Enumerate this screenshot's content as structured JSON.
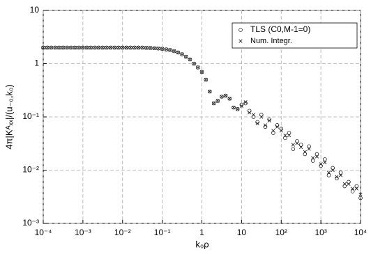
{
  "chart_data": {
    "type": "scatter",
    "xlabel": "k₀ρ",
    "ylabel": "4π|Kᴬₓₓ|/(u₋₀,k₀)",
    "x": [
      0.0001,
      0.000126,
      0.000158,
      0.0002,
      0.000251,
      0.000316,
      0.000398,
      0.000501,
      0.000631,
      0.000794,
      0.001,
      0.00126,
      0.00158,
      0.002,
      0.00251,
      0.00316,
      0.00398,
      0.00501,
      0.00631,
      0.00794,
      0.01,
      0.0126,
      0.0158,
      0.02,
      0.0251,
      0.0316,
      0.0398,
      0.0501,
      0.0631,
      0.0794,
      0.1,
      0.126,
      0.158,
      0.2,
      0.251,
      0.316,
      0.398,
      0.501,
      0.631,
      0.794,
      1,
      1.26,
      1.58,
      2,
      2.51,
      3.16,
      3.98,
      5.01,
      6.31,
      7.94,
      10,
      12.6,
      15.8,
      20,
      25.1,
      31.6,
      39.8,
      50.1,
      63.1,
      79.4,
      100,
      126,
      158,
      200,
      251,
      316,
      398,
      501,
      631,
      794,
      1000,
      1259,
      1585,
      1995,
      2512,
      3162,
      3981,
      5012,
      6310,
      7943,
      10000
    ],
    "series": [
      {
        "name": "TLS (C0,M-1=0)",
        "marker": "circle",
        "color": "#222222",
        "values": [
          2,
          2,
          2,
          2,
          2,
          2,
          2,
          2,
          2,
          2,
          2,
          2,
          2,
          2,
          2,
          2,
          2,
          2,
          2,
          2,
          2,
          2,
          2,
          2,
          2,
          2,
          1.98,
          1.97,
          1.95,
          1.93,
          1.9,
          1.85,
          1.8,
          1.72,
          1.62,
          1.5,
          1.35,
          1.2,
          1.0,
          0.85,
          0.7,
          0.5,
          0.3,
          0.18,
          0.2,
          0.24,
          0.25,
          0.22,
          0.15,
          0.14,
          0.17,
          0.18,
          0.13,
          0.1,
          0.08,
          0.11,
          0.065,
          0.09,
          0.05,
          0.07,
          0.06,
          0.04,
          0.05,
          0.025,
          0.035,
          0.03,
          0.02,
          0.028,
          0.015,
          0.02,
          0.012,
          0.016,
          0.008,
          0.011,
          0.007,
          0.009,
          0.005,
          0.006,
          0.004,
          0.005,
          0.003
        ]
      },
      {
        "name": "Num. Integr.",
        "marker": "cross",
        "color": "#222222",
        "values": [
          2,
          2,
          2,
          2,
          2,
          2,
          2,
          2,
          2,
          2,
          2,
          2,
          2,
          2,
          2,
          2,
          2,
          2,
          2,
          2,
          2,
          2,
          2,
          2,
          2,
          2,
          1.98,
          1.97,
          1.95,
          1.93,
          1.9,
          1.85,
          1.8,
          1.72,
          1.62,
          1.5,
          1.35,
          1.2,
          1.0,
          0.85,
          0.7,
          0.5,
          0.3,
          0.18,
          0.2,
          0.24,
          0.25,
          0.22,
          0.15,
          0.14,
          0.16,
          0.19,
          0.12,
          0.11,
          0.075,
          0.1,
          0.07,
          0.085,
          0.055,
          0.065,
          0.055,
          0.045,
          0.045,
          0.03,
          0.032,
          0.027,
          0.022,
          0.025,
          0.017,
          0.018,
          0.013,
          0.014,
          0.009,
          0.01,
          0.0075,
          0.008,
          0.0055,
          0.0055,
          0.0045,
          0.0045,
          0.0035
        ]
      }
    ],
    "xscale": "log",
    "yscale": "log",
    "xlim": [
      0.0001,
      10000
    ],
    "ylim": [
      0.001,
      10
    ],
    "xticks": [
      {
        "value": 0.0001,
        "label": "10⁻⁴"
      },
      {
        "value": 0.001,
        "label": "10⁻³"
      },
      {
        "value": 0.01,
        "label": "10⁻²"
      },
      {
        "value": 0.1,
        "label": "10⁻¹"
      },
      1,
      10,
      {
        "value": 100,
        "label": "10²"
      },
      {
        "value": 1000,
        "label": "10³"
      },
      {
        "value": 10000,
        "label": "10⁴"
      }
    ],
    "yticks": [
      {
        "value": 0.001,
        "label": "10⁻³"
      },
      {
        "value": 0.01,
        "label": "10⁻²"
      },
      {
        "value": 0.1,
        "label": "10⁻¹"
      },
      1,
      10
    ],
    "grid": true,
    "legend": "upper right"
  }
}
